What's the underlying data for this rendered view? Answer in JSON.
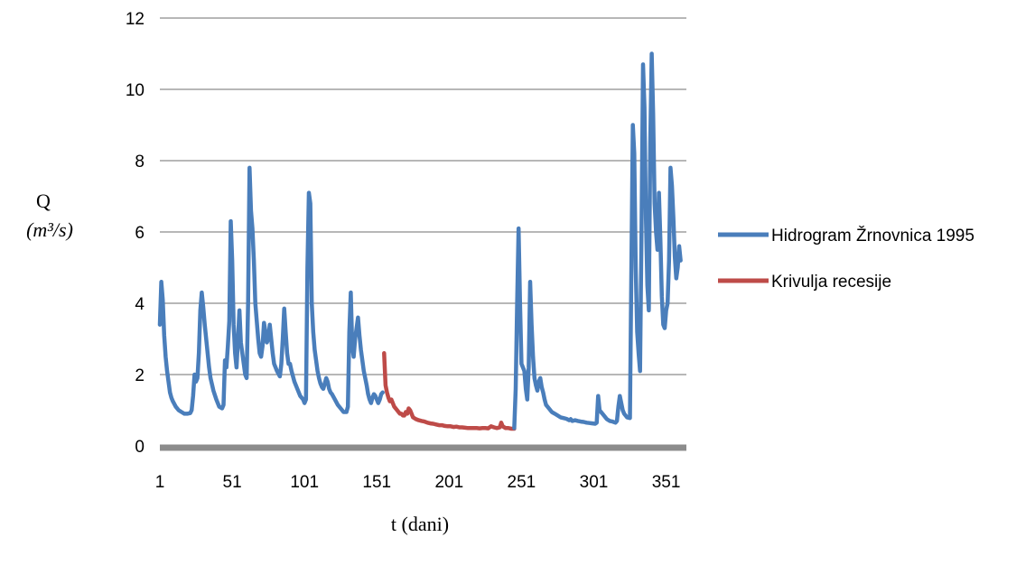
{
  "chart_data": {
    "type": "line",
    "title": "",
    "xlabel": "t (dani)",
    "ylabel": "Q",
    "ylabel_unit": "(m³/s)",
    "xlim": [
      1,
      365
    ],
    "ylim": [
      0,
      12
    ],
    "x_ticks": [
      "1",
      "51",
      "101",
      "151",
      "201",
      "251",
      "301",
      "351"
    ],
    "y_ticks": [
      "0",
      "2",
      "4",
      "6",
      "8",
      "10",
      "12"
    ],
    "grid": "horizontal",
    "legend_position": "right",
    "series": [
      {
        "name": "Hidrogram Žrnovnica 1995",
        "color": "#4a7ebb",
        "points": [
          [
            1,
            3.4
          ],
          [
            2,
            4.6
          ],
          [
            3,
            4.1
          ],
          [
            4,
            3.1
          ],
          [
            5,
            2.5
          ],
          [
            6,
            2.1
          ],
          [
            7,
            1.8
          ],
          [
            8,
            1.5
          ],
          [
            9,
            1.35
          ],
          [
            10,
            1.25
          ],
          [
            12,
            1.1
          ],
          [
            14,
            1.0
          ],
          [
            16,
            0.95
          ],
          [
            18,
            0.9
          ],
          [
            20,
            0.9
          ],
          [
            22,
            0.92
          ],
          [
            23,
            1.0
          ],
          [
            24,
            1.4
          ],
          [
            25,
            2.0
          ],
          [
            26,
            1.8
          ],
          [
            27,
            1.9
          ],
          [
            28,
            2.6
          ],
          [
            29,
            3.8
          ],
          [
            30,
            4.3
          ],
          [
            31,
            3.9
          ],
          [
            32,
            3.4
          ],
          [
            33,
            3.0
          ],
          [
            34,
            2.6
          ],
          [
            35,
            2.2
          ],
          [
            36,
            1.9
          ],
          [
            38,
            1.55
          ],
          [
            40,
            1.3
          ],
          [
            42,
            1.1
          ],
          [
            44,
            1.05
          ],
          [
            45,
            1.15
          ],
          [
            46,
            2.4
          ],
          [
            47,
            2.2
          ],
          [
            48,
            2.8
          ],
          [
            49,
            3.5
          ],
          [
            50,
            6.3
          ],
          [
            51,
            5.2
          ],
          [
            52,
            3.4
          ],
          [
            53,
            2.6
          ],
          [
            54,
            2.2
          ],
          [
            55,
            3.0
          ],
          [
            56,
            3.8
          ],
          [
            57,
            2.9
          ],
          [
            58,
            2.6
          ],
          [
            59,
            2.3
          ],
          [
            60,
            2.0
          ],
          [
            61,
            1.9
          ],
          [
            62,
            4.0
          ],
          [
            63,
            7.8
          ],
          [
            64,
            6.6
          ],
          [
            65,
            6.1
          ],
          [
            66,
            5.2
          ],
          [
            67,
            4.0
          ],
          [
            68,
            3.5
          ],
          [
            69,
            3.0
          ],
          [
            70,
            2.6
          ],
          [
            71,
            2.5
          ],
          [
            72,
            2.8
          ],
          [
            73,
            3.45
          ],
          [
            74,
            3.2
          ],
          [
            75,
            2.9
          ],
          [
            76,
            3.0
          ],
          [
            77,
            3.4
          ],
          [
            78,
            3.0
          ],
          [
            79,
            2.6
          ],
          [
            80,
            2.3
          ],
          [
            81,
            2.2
          ],
          [
            82,
            2.1
          ],
          [
            84,
            1.95
          ],
          [
            85,
            2.3
          ],
          [
            86,
            3.0
          ],
          [
            87,
            3.85
          ],
          [
            88,
            3.2
          ],
          [
            89,
            2.6
          ],
          [
            90,
            2.3
          ],
          [
            91,
            2.3
          ],
          [
            92,
            2.1
          ],
          [
            94,
            1.8
          ],
          [
            96,
            1.6
          ],
          [
            98,
            1.4
          ],
          [
            100,
            1.3
          ],
          [
            101,
            1.2
          ],
          [
            102,
            1.3
          ],
          [
            103,
            5.0
          ],
          [
            104,
            7.1
          ],
          [
            105,
            6.8
          ],
          [
            106,
            4.0
          ],
          [
            107,
            3.2
          ],
          [
            108,
            2.7
          ],
          [
            109,
            2.4
          ],
          [
            110,
            2.1
          ],
          [
            111,
            1.9
          ],
          [
            112,
            1.75
          ],
          [
            113,
            1.65
          ],
          [
            114,
            1.6
          ],
          [
            115,
            1.75
          ],
          [
            116,
            1.9
          ],
          [
            117,
            1.8
          ],
          [
            118,
            1.6
          ],
          [
            119,
            1.5
          ],
          [
            120,
            1.45
          ],
          [
            122,
            1.3
          ],
          [
            124,
            1.15
          ],
          [
            126,
            1.05
          ],
          [
            128,
            0.95
          ],
          [
            130,
            0.95
          ],
          [
            131,
            1.1
          ],
          [
            132,
            3.2
          ],
          [
            133,
            4.3
          ],
          [
            134,
            2.8
          ],
          [
            135,
            2.5
          ],
          [
            136,
            3.0
          ],
          [
            137,
            3.3
          ],
          [
            138,
            3.6
          ],
          [
            139,
            3.1
          ],
          [
            140,
            2.7
          ],
          [
            141,
            2.4
          ],
          [
            142,
            2.1
          ],
          [
            143,
            1.9
          ],
          [
            144,
            1.7
          ],
          [
            145,
            1.45
          ],
          [
            146,
            1.3
          ],
          [
            147,
            1.2
          ],
          [
            148,
            1.35
          ],
          [
            149,
            1.45
          ],
          [
            150,
            1.4
          ],
          [
            151,
            1.3
          ],
          [
            152,
            1.2
          ],
          [
            153,
            1.3
          ],
          [
            154,
            1.45
          ],
          [
            155,
            1.5
          ]
        ]
      },
      {
        "name": "Krivulja recesije",
        "color": "#be4b48",
        "points": [
          [
            156,
            2.6
          ],
          [
            157,
            1.7
          ],
          [
            158,
            1.5
          ],
          [
            159,
            1.35
          ],
          [
            160,
            1.25
          ],
          [
            161,
            1.3
          ],
          [
            162,
            1.2
          ],
          [
            163,
            1.1
          ],
          [
            164,
            1.05
          ],
          [
            165,
            1.0
          ],
          [
            166,
            0.95
          ],
          [
            167,
            0.9
          ],
          [
            168,
            0.9
          ],
          [
            169,
            0.85
          ],
          [
            170,
            0.85
          ],
          [
            171,
            0.95
          ],
          [
            172,
            0.9
          ],
          [
            173,
            1.05
          ],
          [
            174,
            1.0
          ],
          [
            175,
            0.9
          ],
          [
            176,
            0.8
          ],
          [
            178,
            0.75
          ],
          [
            180,
            0.72
          ],
          [
            182,
            0.7
          ],
          [
            184,
            0.68
          ],
          [
            186,
            0.65
          ],
          [
            188,
            0.63
          ],
          [
            190,
            0.62
          ],
          [
            192,
            0.6
          ],
          [
            194,
            0.58
          ],
          [
            196,
            0.58
          ],
          [
            198,
            0.56
          ],
          [
            200,
            0.55
          ],
          [
            202,
            0.55
          ],
          [
            204,
            0.53
          ],
          [
            206,
            0.54
          ],
          [
            208,
            0.52
          ],
          [
            210,
            0.52
          ],
          [
            212,
            0.51
          ],
          [
            214,
            0.5
          ],
          [
            216,
            0.5
          ],
          [
            218,
            0.5
          ],
          [
            220,
            0.5
          ],
          [
            222,
            0.49
          ],
          [
            224,
            0.5
          ],
          [
            226,
            0.5
          ],
          [
            228,
            0.49
          ],
          [
            230,
            0.55
          ],
          [
            232,
            0.52
          ],
          [
            234,
            0.5
          ],
          [
            236,
            0.52
          ],
          [
            237,
            0.65
          ],
          [
            238,
            0.55
          ],
          [
            240,
            0.5
          ],
          [
            242,
            0.5
          ],
          [
            244,
            0.48
          ],
          [
            246,
            0.48
          ]
        ]
      },
      {
        "name": "",
        "color": "#4a7ebb",
        "points": [
          [
            246,
            0.5
          ],
          [
            247,
            1.6
          ],
          [
            248,
            4.0
          ],
          [
            249,
            6.1
          ],
          [
            250,
            4.0
          ],
          [
            251,
            2.3
          ],
          [
            252,
            2.2
          ],
          [
            253,
            2.1
          ],
          [
            254,
            1.6
          ],
          [
            255,
            1.3
          ],
          [
            256,
            2.2
          ],
          [
            257,
            4.6
          ],
          [
            258,
            3.4
          ],
          [
            259,
            2.5
          ],
          [
            260,
            1.9
          ],
          [
            261,
            1.7
          ],
          [
            262,
            1.55
          ],
          [
            263,
            1.8
          ],
          [
            264,
            1.9
          ],
          [
            265,
            1.65
          ],
          [
            266,
            1.5
          ],
          [
            267,
            1.3
          ],
          [
            268,
            1.15
          ],
          [
            270,
            1.05
          ],
          [
            272,
            0.95
          ],
          [
            274,
            0.9
          ],
          [
            276,
            0.85
          ],
          [
            278,
            0.8
          ],
          [
            280,
            0.78
          ],
          [
            282,
            0.76
          ],
          [
            284,
            0.72
          ],
          [
            285,
            0.75
          ],
          [
            286,
            0.7
          ],
          [
            288,
            0.72
          ],
          [
            290,
            0.7
          ],
          [
            292,
            0.68
          ],
          [
            294,
            0.67
          ],
          [
            296,
            0.65
          ],
          [
            298,
            0.64
          ],
          [
            300,
            0.63
          ],
          [
            302,
            0.62
          ],
          [
            303,
            0.65
          ],
          [
            304,
            1.4
          ],
          [
            305,
            1.0
          ],
          [
            306,
            0.95
          ],
          [
            307,
            0.9
          ],
          [
            308,
            0.85
          ],
          [
            310,
            0.75
          ],
          [
            312,
            0.7
          ],
          [
            314,
            0.68
          ],
          [
            316,
            0.65
          ],
          [
            317,
            0.7
          ],
          [
            318,
            1.1
          ],
          [
            319,
            1.4
          ],
          [
            320,
            1.2
          ],
          [
            321,
            1.0
          ],
          [
            322,
            0.9
          ],
          [
            324,
            0.8
          ],
          [
            326,
            0.78
          ],
          [
            327,
            5.0
          ],
          [
            328,
            9.0
          ],
          [
            329,
            8.2
          ],
          [
            330,
            5.0
          ],
          [
            331,
            3.2
          ],
          [
            332,
            2.6
          ],
          [
            333,
            2.1
          ],
          [
            334,
            6.0
          ],
          [
            335,
            10.7
          ],
          [
            336,
            9.5
          ],
          [
            337,
            6.4
          ],
          [
            338,
            4.5
          ],
          [
            339,
            3.8
          ],
          [
            340,
            8.5
          ],
          [
            341,
            11.0
          ],
          [
            342,
            9.3
          ],
          [
            343,
            6.8
          ],
          [
            344,
            6.0
          ],
          [
            345,
            5.5
          ],
          [
            346,
            7.1
          ],
          [
            347,
            5.8
          ],
          [
            348,
            4.2
          ],
          [
            349,
            3.4
          ],
          [
            350,
            3.3
          ],
          [
            351,
            3.8
          ],
          [
            352,
            4.0
          ],
          [
            353,
            5.2
          ],
          [
            354,
            7.8
          ],
          [
            355,
            7.3
          ],
          [
            356,
            6.4
          ],
          [
            357,
            5.3
          ],
          [
            358,
            4.7
          ],
          [
            359,
            5.0
          ],
          [
            360,
            5.6
          ],
          [
            361,
            5.2
          ]
        ]
      }
    ]
  }
}
